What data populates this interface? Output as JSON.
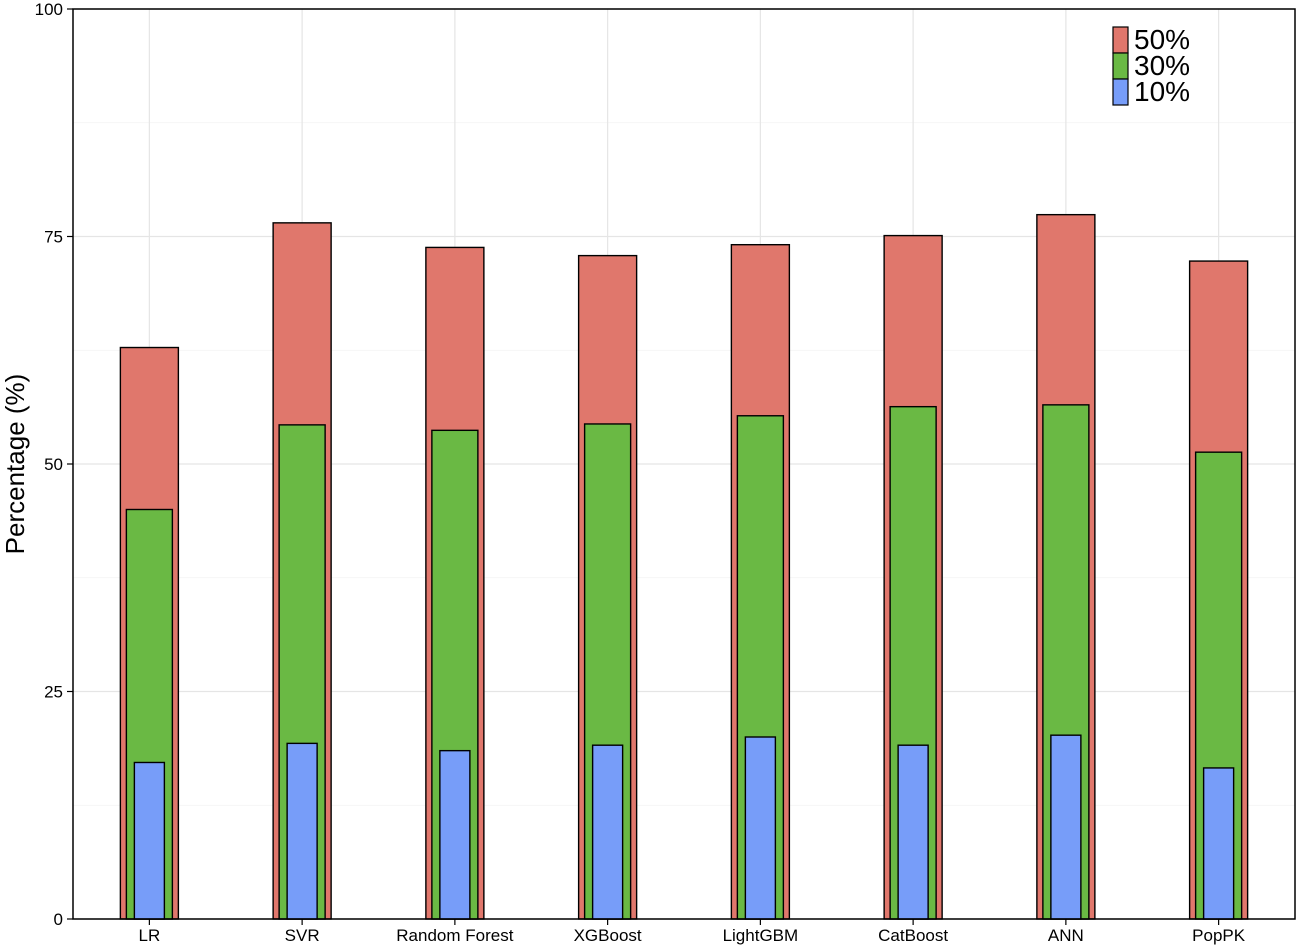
{
  "chart_data": {
    "type": "bar",
    "title": "",
    "xlabel": "",
    "ylabel": "Percentage (%)",
    "ylim": [
      0,
      100
    ],
    "yticks": [
      0,
      25,
      50,
      75,
      100
    ],
    "grid": true,
    "legend_position": "top-right",
    "categories": [
      "LR",
      "SVR",
      "Random Forest",
      "XGBoost",
      "LightGBM",
      "CatBoost",
      "ANN",
      "PopPK"
    ],
    "series": [
      {
        "name": "50%",
        "color": "#E0776C",
        "values": [
          62.8,
          76.5,
          73.8,
          72.9,
          74.1,
          75.1,
          77.4,
          72.3
        ]
      },
      {
        "name": "30%",
        "color": "#6AB944",
        "values": [
          45.0,
          54.3,
          53.7,
          54.4,
          55.3,
          56.3,
          56.5,
          51.3
        ]
      },
      {
        "name": "10%",
        "color": "#779DF9",
        "values": [
          17.2,
          19.3,
          18.5,
          19.1,
          20.0,
          19.1,
          20.2,
          16.6
        ]
      }
    ]
  }
}
